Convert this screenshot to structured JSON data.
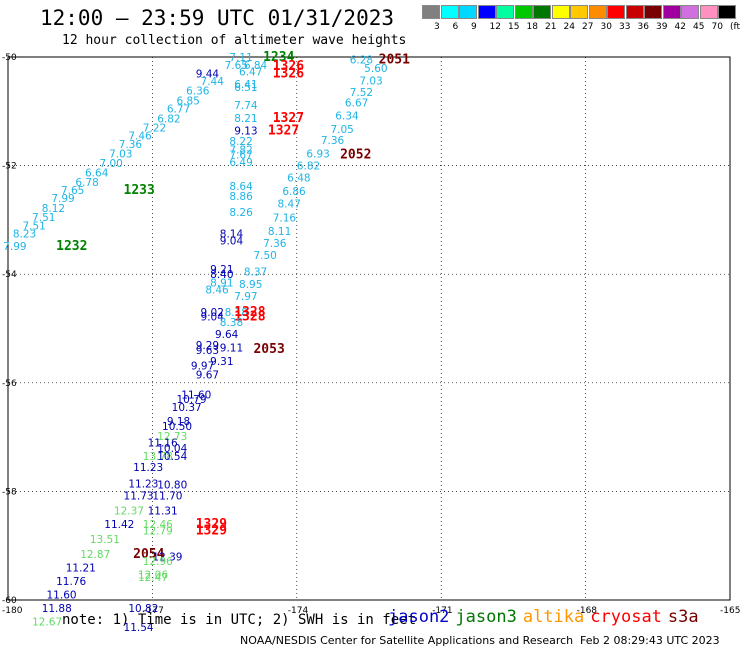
{
  "header": {
    "title": "12:00 — 23:59 UTC 01/31/2023",
    "subtitle": "12 hour collection of altimeter wave heights"
  },
  "legend": {
    "colors": [
      "#808080",
      "#00ffff",
      "#00d8ff",
      "#0000ff",
      "#00ffa0",
      "#00c800",
      "#007800",
      "#ffff00",
      "#ffc800",
      "#ff8c00",
      "#ff0000",
      "#c80000",
      "#780000",
      "#a000a0",
      "#d070e0",
      "#ff90c0",
      "#000000"
    ],
    "labels": [
      "3",
      "6",
      "9",
      "12",
      "15",
      "18",
      "21",
      "24",
      "27",
      "30",
      "33",
      "36",
      "39",
      "42",
      "45",
      "70",
      "(ft)"
    ]
  },
  "axes": {
    "lat_labels": [
      "-50",
      "-52",
      "-54",
      "-56",
      "-58",
      "-60"
    ],
    "lon_labels": [
      "-180",
      "-177",
      "-174",
      "-171",
      "-168",
      "-165"
    ]
  },
  "colors": {
    "jason2": "#0000c8",
    "jason3": "#007800",
    "altika": "#ff9600",
    "cryosat": "#ff0000",
    "s3a": "#780000",
    "cyan": "#1eb4e6",
    "lightgreen": "#64dc64",
    "navy": "#0000b4",
    "darkgreen": "#008200"
  },
  "chart_data": {
    "type": "scatter",
    "x_range": [
      -180,
      -165
    ],
    "y_range": [
      -60,
      -50
    ],
    "wave_labels": [
      {
        "text": "7.11",
        "lon": -175.4,
        "lat": -50.0,
        "c": "cyan"
      },
      {
        "text": "1234",
        "lon": -174.7,
        "lat": -50.0,
        "c": "darkgreen",
        "bold": true
      },
      {
        "text": "2051",
        "lon": -172.3,
        "lat": -50.05,
        "c": "s3a",
        "bold": true
      },
      {
        "text": "6.28",
        "lon": -172.9,
        "lat": -50.05,
        "c": "cyan"
      },
      {
        "text": "7.65",
        "lon": -175.5,
        "lat": -50.15,
        "c": "cyan"
      },
      {
        "text": "6.84",
        "lon": -175.1,
        "lat": -50.15,
        "c": "cyan"
      },
      {
        "text": "1326",
        "lon": -174.5,
        "lat": -50.17,
        "c": "cryosat",
        "bold": true
      },
      {
        "text": "9.44",
        "lon": -176.1,
        "lat": -50.3,
        "c": "navy"
      },
      {
        "text": "6.47",
        "lon": -175.2,
        "lat": -50.27,
        "c": "cyan"
      },
      {
        "text": "1326",
        "lon": -174.5,
        "lat": -50.3,
        "c": "cryosat",
        "bold": true
      },
      {
        "text": "5.60",
        "lon": -172.6,
        "lat": -50.2,
        "c": "cyan"
      },
      {
        "text": "7.44",
        "lon": -176.0,
        "lat": -50.44,
        "c": "cyan"
      },
      {
        "text": "6.41",
        "lon": -175.3,
        "lat": -50.5,
        "c": "cyan"
      },
      {
        "text": "6.51",
        "lon": -175.3,
        "lat": -50.55,
        "c": "cyan"
      },
      {
        "text": "7.03",
        "lon": -172.7,
        "lat": -50.43,
        "c": "cyan"
      },
      {
        "text": "6.36",
        "lon": -176.3,
        "lat": -50.62,
        "c": "cyan"
      },
      {
        "text": "7.52",
        "lon": -172.9,
        "lat": -50.64,
        "c": "cyan"
      },
      {
        "text": "6.85",
        "lon": -176.5,
        "lat": -50.8,
        "c": "cyan"
      },
      {
        "text": "6.67",
        "lon": -173.0,
        "lat": -50.84,
        "c": "cyan"
      },
      {
        "text": "7.74",
        "lon": -175.3,
        "lat": -50.88,
        "c": "cyan"
      },
      {
        "text": "6.77",
        "lon": -176.7,
        "lat": -50.95,
        "c": "cyan"
      },
      {
        "text": "6.34",
        "lon": -173.2,
        "lat": -51.08,
        "c": "cyan"
      },
      {
        "text": "6.82",
        "lon": -176.9,
        "lat": -51.13,
        "c": "cyan"
      },
      {
        "text": "8.21",
        "lon": -175.3,
        "lat": -51.12,
        "c": "cyan"
      },
      {
        "text": "1327",
        "lon": -174.5,
        "lat": -51.12,
        "c": "cryosat",
        "bold": true
      },
      {
        "text": "7.22",
        "lon": -177.2,
        "lat": -51.3,
        "c": "cyan"
      },
      {
        "text": "9.13",
        "lon": -175.3,
        "lat": -51.35,
        "c": "navy"
      },
      {
        "text": "1327",
        "lon": -174.6,
        "lat": -51.35,
        "c": "cryosat",
        "bold": true
      },
      {
        "text": "7.05",
        "lon": -173.3,
        "lat": -51.33,
        "c": "cyan"
      },
      {
        "text": "7.46",
        "lon": -177.5,
        "lat": -51.45,
        "c": "cyan"
      },
      {
        "text": "8.22",
        "lon": -175.4,
        "lat": -51.55,
        "c": "cyan"
      },
      {
        "text": "7.36",
        "lon": -173.5,
        "lat": -51.53,
        "c": "cyan"
      },
      {
        "text": "7.36",
        "lon": -177.7,
        "lat": -51.6,
        "c": "cyan"
      },
      {
        "text": "7.82",
        "lon": -175.4,
        "lat": -51.7,
        "c": "cyan"
      },
      {
        "text": "7.03",
        "lon": -177.9,
        "lat": -51.78,
        "c": "cyan"
      },
      {
        "text": "6.93",
        "lon": -173.8,
        "lat": -51.78,
        "c": "cyan"
      },
      {
        "text": "2052",
        "lon": -173.1,
        "lat": -51.8,
        "c": "s3a",
        "bold": true
      },
      {
        "text": "7.67",
        "lon": -175.4,
        "lat": -51.8,
        "c": "cyan"
      },
      {
        "text": "7.00",
        "lon": -178.1,
        "lat": -51.95,
        "c": "cyan"
      },
      {
        "text": "6.49",
        "lon": -175.4,
        "lat": -51.93,
        "c": "cyan"
      },
      {
        "text": "6.82",
        "lon": -174.0,
        "lat": -52.0,
        "c": "cyan"
      },
      {
        "text": "6.64",
        "lon": -178.4,
        "lat": -52.13,
        "c": "cyan"
      },
      {
        "text": "6.48",
        "lon": -174.2,
        "lat": -52.22,
        "c": "cyan"
      },
      {
        "text": "6.78",
        "lon": -178.6,
        "lat": -52.3,
        "c": "cyan"
      },
      {
        "text": "8.64",
        "lon": -175.4,
        "lat": -52.38,
        "c": "cyan"
      },
      {
        "text": "1233",
        "lon": -177.6,
        "lat": -52.45,
        "c": "darkgreen",
        "bold": true
      },
      {
        "text": "7.65",
        "lon": -178.9,
        "lat": -52.45,
        "c": "cyan"
      },
      {
        "text": "6.86",
        "lon": -174.3,
        "lat": -52.47,
        "c": "cyan"
      },
      {
        "text": "8.86",
        "lon": -175.4,
        "lat": -52.56,
        "c": "cyan"
      },
      {
        "text": "7.99",
        "lon": -179.1,
        "lat": -52.6,
        "c": "cyan"
      },
      {
        "text": "8.47",
        "lon": -174.4,
        "lat": -52.7,
        "c": "cyan"
      },
      {
        "text": "8.12",
        "lon": -179.3,
        "lat": -52.78,
        "c": "cyan"
      },
      {
        "text": "8.26",
        "lon": -175.4,
        "lat": -52.85,
        "c": "cyan"
      },
      {
        "text": "7.16",
        "lon": -174.5,
        "lat": -52.96,
        "c": "cyan"
      },
      {
        "text": "7.51",
        "lon": -179.5,
        "lat": -52.95,
        "c": "cyan"
      },
      {
        "text": "7.51",
        "lon": -179.7,
        "lat": -53.1,
        "c": "cyan"
      },
      {
        "text": "8.11",
        "lon": -174.6,
        "lat": -53.2,
        "c": "cyan"
      },
      {
        "text": "8.14",
        "lon": -175.6,
        "lat": -53.25,
        "c": "navy"
      },
      {
        "text": "8.23",
        "lon": -179.9,
        "lat": -53.25,
        "c": "cyan"
      },
      {
        "text": "9.04",
        "lon": -175.6,
        "lat": -53.38,
        "c": "navy"
      },
      {
        "text": "7.36",
        "lon": -174.7,
        "lat": -53.43,
        "c": "cyan"
      },
      {
        "text": "7.99",
        "lon": -180.1,
        "lat": -53.48,
        "c": "cyan"
      },
      {
        "text": "1232",
        "lon": -179.0,
        "lat": -53.48,
        "c": "darkgreen",
        "bold": true
      },
      {
        "text": "7.50",
        "lon": -174.9,
        "lat": -53.65,
        "c": "cyan"
      },
      {
        "text": "9.21",
        "lon": -175.8,
        "lat": -53.9,
        "c": "navy"
      },
      {
        "text": "8.37",
        "lon": -175.1,
        "lat": -53.95,
        "c": "cyan"
      },
      {
        "text": "8.40",
        "lon": -175.8,
        "lat": -54.0,
        "c": "navy"
      },
      {
        "text": "8.91",
        "lon": -175.8,
        "lat": -54.15,
        "c": "cyan"
      },
      {
        "text": "8.95",
        "lon": -175.2,
        "lat": -54.18,
        "c": "cyan"
      },
      {
        "text": "8.46",
        "lon": -175.9,
        "lat": -54.28,
        "c": "cyan"
      },
      {
        "text": "7.97",
        "lon": -175.3,
        "lat": -54.4,
        "c": "cyan"
      },
      {
        "text": "9.02",
        "lon": -176.0,
        "lat": -54.7,
        "c": "navy"
      },
      {
        "text": "8.18",
        "lon": -175.5,
        "lat": -54.7,
        "c": "cyan"
      },
      {
        "text": "1328",
        "lon": -175.3,
        "lat": -54.7,
        "c": "cryosat",
        "bold": true
      },
      {
        "text": "9.04",
        "lon": -176.0,
        "lat": -54.78,
        "c": "navy"
      },
      {
        "text": "1328",
        "lon": -175.3,
        "lat": -54.78,
        "c": "cryosat",
        "bold": true
      },
      {
        "text": "8.38",
        "lon": -175.6,
        "lat": -54.88,
        "c": "cyan"
      },
      {
        "text": "9.64",
        "lon": -175.7,
        "lat": -55.1,
        "c": "navy"
      },
      {
        "text": "9.29",
        "lon": -176.1,
        "lat": -55.3,
        "c": "navy"
      },
      {
        "text": "9.11",
        "lon": -175.6,
        "lat": -55.35,
        "c": "navy"
      },
      {
        "text": "2053",
        "lon": -174.9,
        "lat": -55.38,
        "c": "s3a",
        "bold": true
      },
      {
        "text": "9.63",
        "lon": -176.1,
        "lat": -55.4,
        "c": "navy"
      },
      {
        "text": "9.31",
        "lon": -175.8,
        "lat": -55.6,
        "c": "navy"
      },
      {
        "text": "9.97",
        "lon": -176.2,
        "lat": -55.68,
        "c": "navy"
      },
      {
        "text": "9.67",
        "lon": -176.1,
        "lat": -55.85,
        "c": "navy"
      },
      {
        "text": "11.60",
        "lon": -176.4,
        "lat": -56.22,
        "c": "navy"
      },
      {
        "text": "10.79",
        "lon": -176.5,
        "lat": -56.3,
        "c": "navy"
      },
      {
        "text": "10.37",
        "lon": -176.6,
        "lat": -56.45,
        "c": "navy"
      },
      {
        "text": "9.18",
        "lon": -176.7,
        "lat": -56.7,
        "c": "navy"
      },
      {
        "text": "10.50",
        "lon": -176.8,
        "lat": -56.8,
        "c": "navy"
      },
      {
        "text": "12.73",
        "lon": -176.9,
        "lat": -56.98,
        "c": "lightgreen"
      },
      {
        "text": "11.16",
        "lon": -177.1,
        "lat": -57.1,
        "c": "navy"
      },
      {
        "text": "10.04",
        "lon": -176.9,
        "lat": -57.2,
        "c": "navy"
      },
      {
        "text": "13.78",
        "lon": -177.2,
        "lat": -57.35,
        "c": "lightgreen"
      },
      {
        "text": "10.54",
        "lon": -176.9,
        "lat": -57.35,
        "c": "navy"
      },
      {
        "text": "11.23",
        "lon": -177.4,
        "lat": -57.55,
        "c": "navy"
      },
      {
        "text": "11.23",
        "lon": -177.5,
        "lat": -57.85,
        "c": "navy"
      },
      {
        "text": "10.80",
        "lon": -176.9,
        "lat": -57.87,
        "c": "navy"
      },
      {
        "text": "11.73",
        "lon": -177.6,
        "lat": -58.08,
        "c": "navy"
      },
      {
        "text": "11.70",
        "lon": -177.0,
        "lat": -58.08,
        "c": "navy"
      },
      {
        "text": "12.37",
        "lon": -177.8,
        "lat": -58.35,
        "c": "lightgreen"
      },
      {
        "text": "11.31",
        "lon": -177.1,
        "lat": -58.35,
        "c": "navy"
      },
      {
        "text": "11.42",
        "lon": -178.0,
        "lat": -58.6,
        "c": "navy"
      },
      {
        "text": "12.46",
        "lon": -177.2,
        "lat": -58.6,
        "c": "lightgreen"
      },
      {
        "text": "1329",
        "lon": -176.1,
        "lat": -58.6,
        "c": "cryosat",
        "bold": true
      },
      {
        "text": "12.79",
        "lon": -177.2,
        "lat": -58.72,
        "c": "lightgreen"
      },
      {
        "text": "1329",
        "lon": -176.1,
        "lat": -58.72,
        "c": "cryosat",
        "bold": true
      },
      {
        "text": "13.51",
        "lon": -178.3,
        "lat": -58.88,
        "c": "lightgreen"
      },
      {
        "text": "12.87",
        "lon": -178.5,
        "lat": -59.15,
        "c": "lightgreen"
      },
      {
        "text": "2054",
        "lon": -177.4,
        "lat": -59.15,
        "c": "s3a",
        "bold": true
      },
      {
        "text": "12.39",
        "lon": -177.0,
        "lat": -59.2,
        "c": "navy"
      },
      {
        "text": "12.96",
        "lon": -177.2,
        "lat": -59.28,
        "c": "lightgreen"
      },
      {
        "text": "11.21",
        "lon": -178.8,
        "lat": -59.4,
        "c": "navy"
      },
      {
        "text": "12.06",
        "lon": -177.3,
        "lat": -59.53,
        "c": "lightgreen"
      },
      {
        "text": "12.47",
        "lon": -177.3,
        "lat": -59.58,
        "c": "lightgreen"
      },
      {
        "text": "11.76",
        "lon": -179.0,
        "lat": -59.65,
        "c": "navy"
      },
      {
        "text": "11.60",
        "lon": -179.2,
        "lat": -59.9,
        "c": "navy"
      },
      {
        "text": "11.88",
        "lon": -179.3,
        "lat": -60.15,
        "c": "navy"
      },
      {
        "text": "10.82",
        "lon": -177.5,
        "lat": -60.15,
        "c": "navy"
      },
      {
        "text": "12.67",
        "lon": -179.5,
        "lat": -60.4,
        "c": "lightgreen"
      },
      {
        "text": "11.54",
        "lon": -177.6,
        "lat": -60.5,
        "c": "navy"
      }
    ]
  },
  "footer": {
    "note": "note: 1) Time is in UTC; 2) SWH is in feet",
    "sats": [
      {
        "name": "jason2",
        "c": "jason2"
      },
      {
        "name": "jason3",
        "c": "jason3"
      },
      {
        "name": "altika",
        "c": "altika"
      },
      {
        "name": "cryosat",
        "c": "cryosat"
      },
      {
        "name": "s3a",
        "c": "s3a"
      }
    ],
    "credit_org": "NOAA/NESDIS Center for Satellite Applications and Research",
    "credit_time": "Feb  2 08:29:43 UTC 2023"
  }
}
